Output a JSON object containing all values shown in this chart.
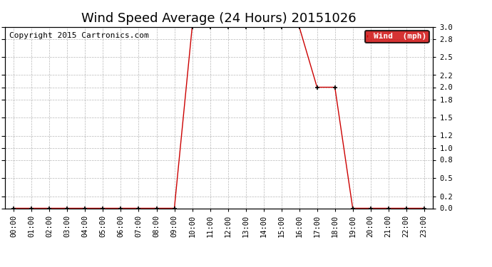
{
  "title": "Wind Speed Average (24 Hours) 20151026",
  "copyright": "Copyright 2015 Cartronics.com",
  "legend_label": "Wind  (mph)",
  "legend_bg": "#cc0000",
  "legend_text_color": "#ffffff",
  "line_color": "#cc0000",
  "marker": "+",
  "marker_color": "#000000",
  "ylim": [
    0.0,
    3.0
  ],
  "yticks": [
    0.0,
    0.2,
    0.5,
    0.8,
    1.0,
    1.2,
    1.5,
    1.8,
    2.0,
    2.2,
    2.5,
    2.8,
    3.0
  ],
  "ytick_labels": [
    "0.0",
    "0.2",
    "0.5",
    "0.8",
    "1.0",
    "1.2",
    "1.5",
    "1.8",
    "2.0",
    "2.2",
    "2.5",
    "2.8",
    "3.0"
  ],
  "background_color": "#ffffff",
  "grid_color": "#888888",
  "hours": [
    "00:00",
    "01:00",
    "02:00",
    "03:00",
    "04:00",
    "05:00",
    "06:00",
    "07:00",
    "08:00",
    "09:00",
    "10:00",
    "11:00",
    "12:00",
    "13:00",
    "14:00",
    "15:00",
    "16:00",
    "17:00",
    "18:00",
    "19:00",
    "20:00",
    "21:00",
    "22:00",
    "23:00"
  ],
  "values": [
    0.0,
    0.0,
    0.0,
    0.0,
    0.0,
    0.0,
    0.0,
    0.0,
    0.0,
    0.0,
    3.0,
    3.0,
    3.0,
    3.0,
    3.0,
    3.0,
    3.0,
    2.0,
    2.0,
    0.0,
    0.0,
    0.0,
    0.0,
    0.0
  ],
  "title_fontsize": 13,
  "tick_fontsize": 7.5,
  "copyright_fontsize": 8
}
